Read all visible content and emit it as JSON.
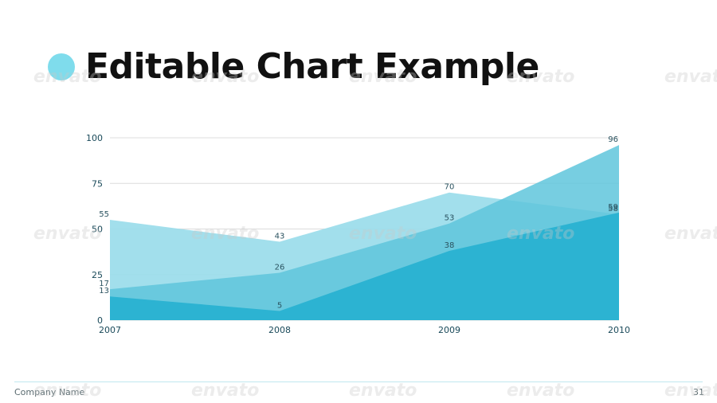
{
  "slide": {
    "title": "Editable Chart Example",
    "company": "Company Name",
    "page_number": "31",
    "watermark": "envato"
  },
  "colors": {
    "accent_dot": "#7fdcec",
    "series": [
      "#9adcea",
      "#5fc6dc",
      "#2cb3d2"
    ]
  },
  "chart_data": {
    "type": "area",
    "categories": [
      "2007",
      "2008",
      "2009",
      "2010"
    ],
    "ylim": [
      0,
      100
    ],
    "yticks": [
      0,
      25,
      50,
      75,
      100
    ],
    "grid": true,
    "series": [
      {
        "values": [
          55,
          43,
          70,
          58
        ]
      },
      {
        "values": [
          17,
          26,
          53,
          96
        ]
      },
      {
        "values": [
          13,
          5,
          38,
          59
        ]
      }
    ]
  }
}
